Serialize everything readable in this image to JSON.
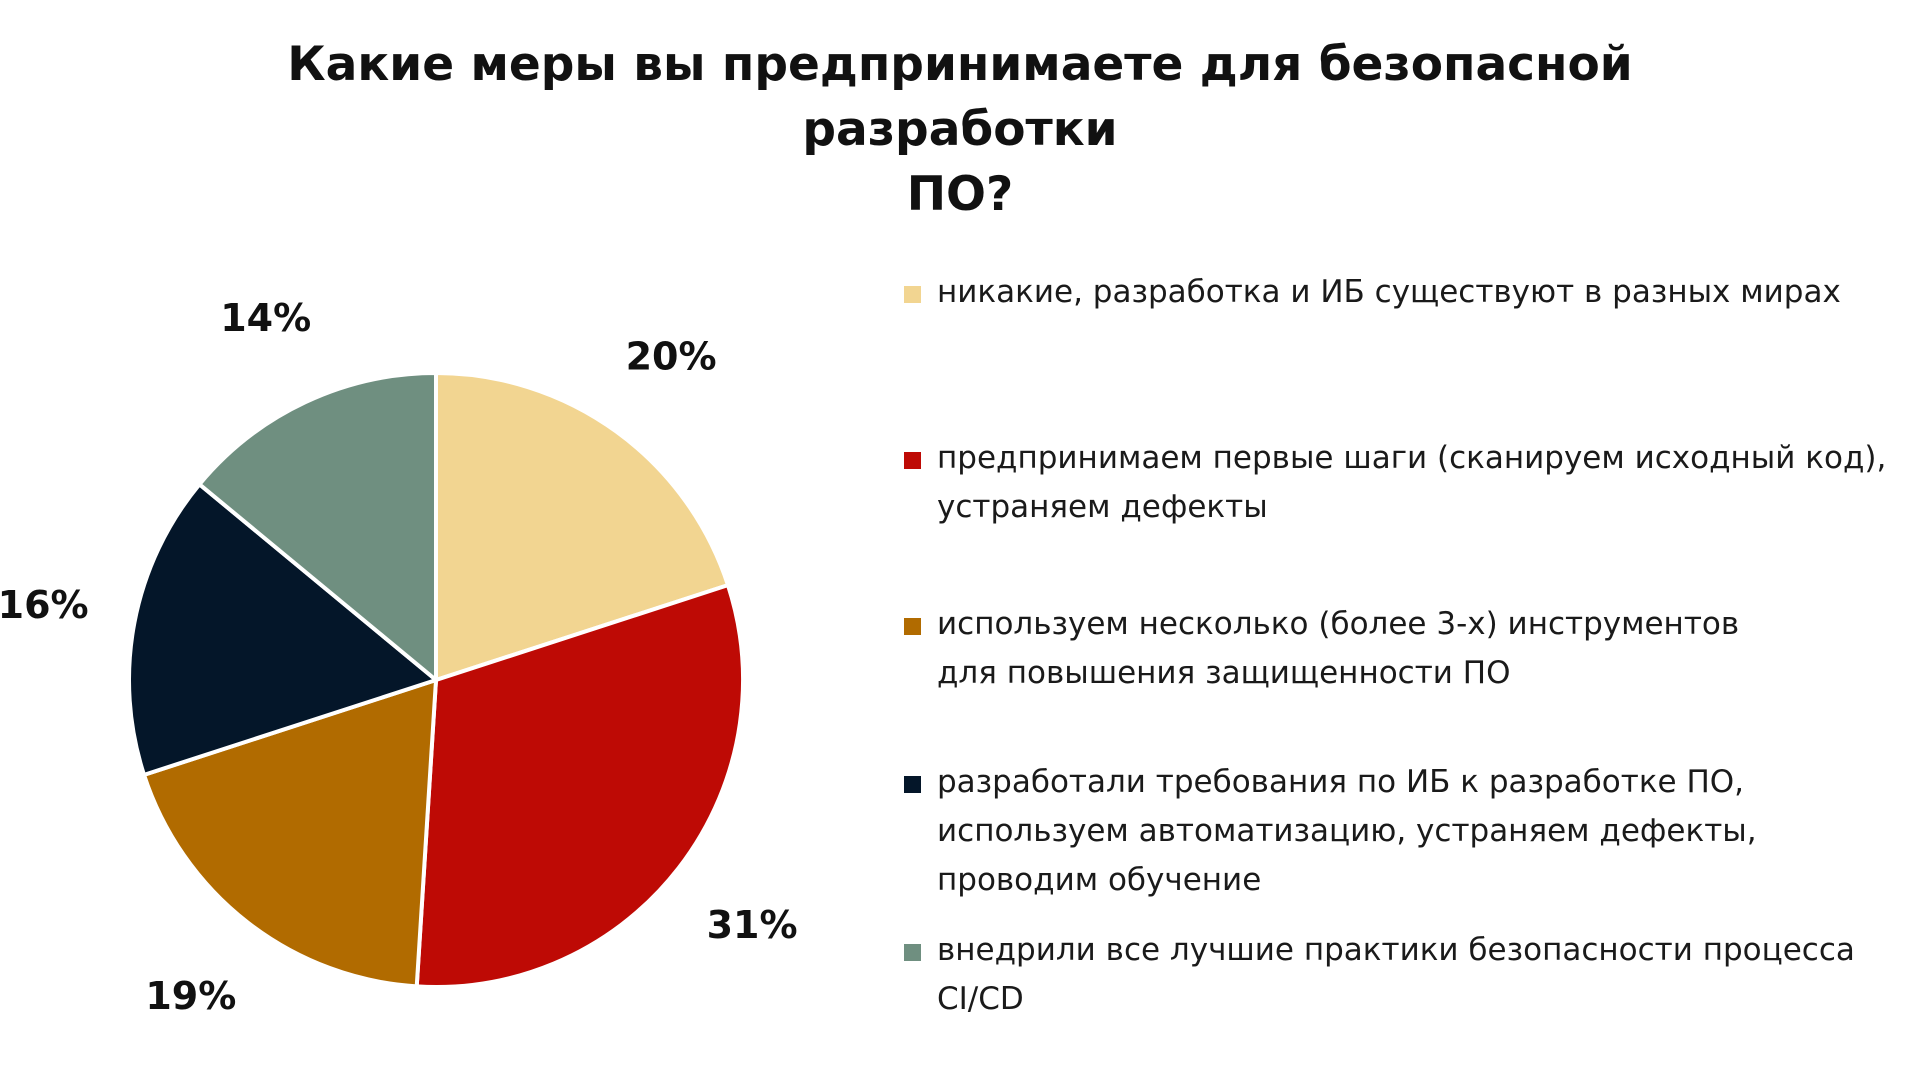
{
  "chart_data": {
    "type": "pie",
    "title": [
      "Какие меры вы предпринимаете для безопасной разработки",
      "ПО?"
    ],
    "legend_position": "right",
    "slices": [
      {
        "label": "никакие, разработка и ИБ существуют в разных мирах",
        "value": 20,
        "display": "20%",
        "color": "#F2D591"
      },
      {
        "label": "предпринимаем первые шаги (сканируем исходный код),\nустраняем дефекты",
        "value": 31,
        "display": "31%",
        "color": "#BE0A05"
      },
      {
        "label": "используем несколько (более 3-х) инструментов\nдля повышения защищенности ПО",
        "value": 19,
        "display": "19%",
        "color": "#B16B00"
      },
      {
        "label": "разработали требования по ИБ к разработке ПО,\nиспользуем автоматизацию, устраняем дефекты,\nпроводим обучение",
        "value": 16,
        "display": "16%",
        "color": "#041629"
      },
      {
        "label": "внедрили все лучшие практики безопасности процесса\nCI/CD",
        "value": 14,
        "display": "14%",
        "color": "#6F8F80"
      }
    ]
  }
}
